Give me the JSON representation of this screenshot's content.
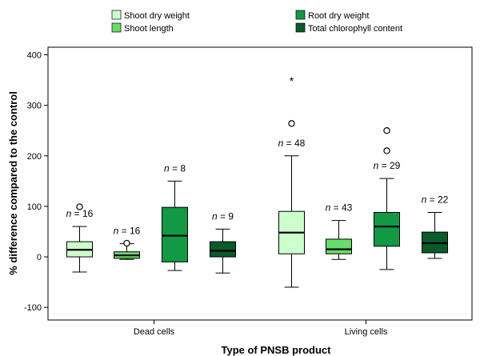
{
  "chart_data": {
    "type": "boxplot",
    "xlabel": "Type of PNSB product",
    "ylabel": "% difference compared to the control",
    "ylim": [
      -125,
      415
    ],
    "yticks": [
      -100,
      0,
      100,
      200,
      300,
      400
    ],
    "grid": false,
    "legend_position": "top",
    "categories": [
      "Dead cells",
      "Living cells"
    ],
    "series": [
      {
        "name": "Shoot dry weight",
        "color": "#ccffcc",
        "boxes": [
          {
            "category": "Dead cells",
            "min": -30,
            "q1": 0,
            "median": 14,
            "q3": 30,
            "max": 60,
            "n_label": "n = 16",
            "outliers": [
              99
            ],
            "extremes": []
          },
          {
            "category": "Living cells",
            "min": -60,
            "q1": 6,
            "median": 48,
            "q3": 90,
            "max": 200,
            "n_label": "n = 48",
            "outliers": [
              264
            ],
            "extremes": [
              350
            ]
          }
        ]
      },
      {
        "name": "Shoot length",
        "color": "#66dd66",
        "boxes": [
          {
            "category": "Dead cells",
            "min": -5,
            "q1": -3,
            "median": 3,
            "q3": 10,
            "max": 26,
            "n_label": "n = 16",
            "outliers": [
              27
            ],
            "extremes": []
          },
          {
            "category": "Living cells",
            "min": -5,
            "q1": 6,
            "median": 15,
            "q3": 35,
            "max": 72,
            "n_label": "n = 43",
            "outliers": [],
            "extremes": []
          }
        ]
      },
      {
        "name": "Root dry weight",
        "color": "#119944",
        "boxes": [
          {
            "category": "Dead cells",
            "min": -27,
            "q1": -10,
            "median": 42,
            "q3": 98,
            "max": 150,
            "n_label": "n = 8",
            "outliers": [],
            "extremes": []
          },
          {
            "category": "Living cells",
            "min": -25,
            "q1": 21,
            "median": 60,
            "q3": 88,
            "max": 155,
            "n_label": "n = 29",
            "outliers": [
              210,
              250
            ],
            "extremes": []
          }
        ]
      },
      {
        "name": "Total chlorophyll content",
        "color": "#0a5a2a",
        "boxes": [
          {
            "category": "Dead cells",
            "min": -32,
            "q1": 0,
            "median": 12,
            "q3": 30,
            "max": 55,
            "n_label": "n = 9",
            "outliers": [],
            "extremes": []
          },
          {
            "category": "Living cells",
            "min": -3,
            "q1": 8,
            "median": 27,
            "q3": 49,
            "max": 88,
            "n_label": "n = 22",
            "outliers": [],
            "extremes": []
          }
        ]
      }
    ]
  }
}
